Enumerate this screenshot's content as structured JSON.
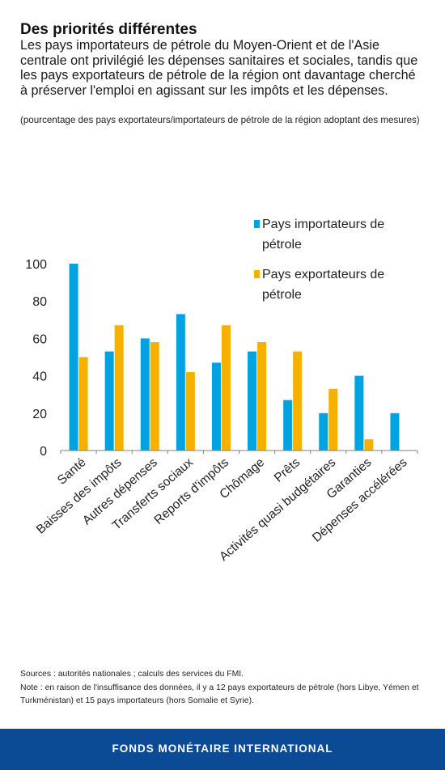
{
  "title": "Des priorités différentes",
  "subtitle": "Les pays importateurs de pétrole du Moyen-Orient et de l'Asie centrale ont privilégié les dépenses sanitaires et sociales, tandis que les pays exportateurs de pétrole de la région ont davantage cherché à préserver l'emploi en agissant sur les impôts et les dépenses.",
  "unit_note": "(pourcentage des pays exportateurs/importateurs de pétrole de la région adoptant des mesures)",
  "sources": "Sources : autorités nationales ; calculs des services du FMI.",
  "note": "Note : en raison de l'insuffisance des données, il y a 12 pays exportateurs de pétrole (hors Libye, Yémen et Turkménistan) et 15 pays importateurs (hors Somalie et Syrie).",
  "footer": "FONDS MONÉTAIRE INTERNATIONAL",
  "colors": {
    "importers": "#00a3e0",
    "exporters": "#f5b000",
    "footer_bg": "#0b4b96"
  },
  "chart_data": {
    "type": "bar",
    "categories": [
      "Santé",
      "Baisses des impôts",
      "Autres dépenses",
      "Transferts sociaux",
      "Reports d'impôts",
      "Chômage",
      "Prêts",
      "Activités quasi budgétaires",
      "Garanties",
      "Dépenses accélérées"
    ],
    "series": [
      {
        "name": "Pays importateurs de pétrole",
        "color": "#00a3e0",
        "values": [
          100,
          53,
          60,
          73,
          47,
          53,
          27,
          20,
          40,
          20
        ]
      },
      {
        "name": "Pays exportateurs de pétrole",
        "color": "#f5b000",
        "values": [
          50,
          67,
          58,
          42,
          67,
          58,
          53,
          33,
          6,
          0
        ]
      }
    ],
    "yticks": [
      0,
      20,
      40,
      60,
      80,
      100
    ],
    "ylim": [
      0,
      100
    ],
    "grid": false,
    "legend_position": "top-right"
  }
}
